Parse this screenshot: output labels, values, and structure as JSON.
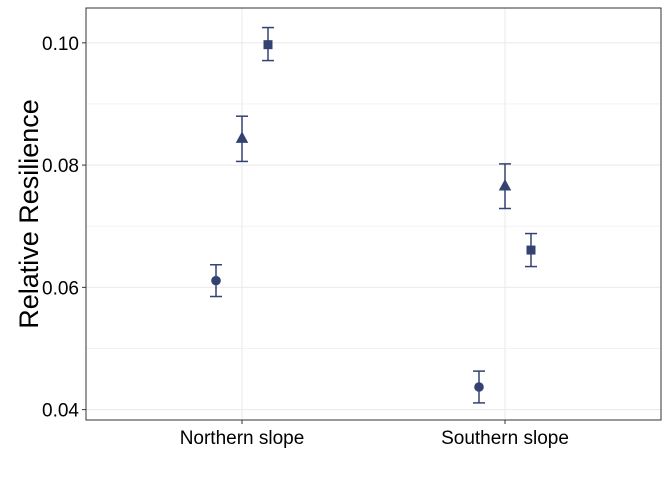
{
  "chart_data": {
    "type": "scatter",
    "title": "",
    "xlabel": "",
    "ylabel": "Relative Resilience",
    "categories": [
      "Northern slope",
      "Southern slope"
    ],
    "ylim": [
      0.0383,
      0.1057
    ],
    "yticks": [
      0.04,
      0.06,
      0.08,
      0.1
    ],
    "ytick_labels": [
      "0.04",
      "0.06",
      "0.08",
      "0.10"
    ],
    "grid": true,
    "legend": "none",
    "series": [
      {
        "name": "circle",
        "marker": "circle",
        "dodge": -1,
        "values": [
          0.0611,
          0.0437
        ],
        "lower": [
          0.0585,
          0.0411
        ],
        "upper": [
          0.0637,
          0.0463
        ]
      },
      {
        "name": "triangle",
        "marker": "triangle",
        "dodge": 0,
        "values": [
          0.0844,
          0.0766
        ],
        "lower": [
          0.0806,
          0.0729
        ],
        "upper": [
          0.088,
          0.0802
        ]
      },
      {
        "name": "square",
        "marker": "square",
        "dodge": 1,
        "values": [
          0.0997,
          0.0661
        ],
        "lower": [
          0.0971,
          0.0634
        ],
        "upper": [
          0.1025,
          0.0688
        ]
      }
    ],
    "colors": {
      "point": "#344272",
      "grid": "#ebebeb",
      "panel_border": "#333333"
    }
  }
}
